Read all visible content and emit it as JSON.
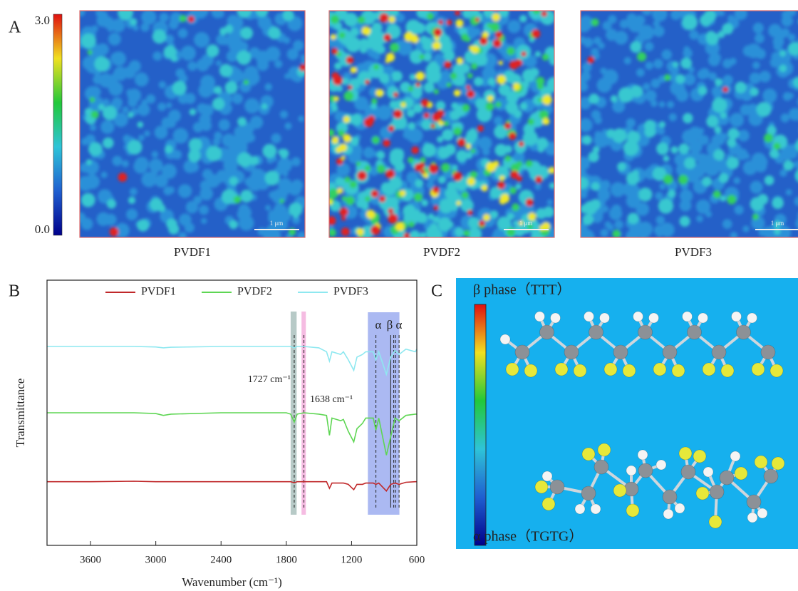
{
  "panel_a": {
    "label": "A",
    "colorbar": {
      "max_label": "3.0",
      "min_label": "0.0"
    },
    "maps": [
      {
        "caption": "PVDF1",
        "scale_bar": "1 μm"
      },
      {
        "caption": "PVDF2",
        "scale_bar": "1 μm"
      },
      {
        "caption": "PVDF3",
        "scale_bar": "1 μm"
      }
    ]
  },
  "chart_data": {
    "type": "line",
    "panel_label": "B",
    "x_label": "Wavenumber (cm⁻¹)",
    "y_label": "Transmittance",
    "xlim": [
      4000,
      600
    ],
    "xticks": [
      3600,
      3000,
      2400,
      1800,
      1200,
      600
    ],
    "ylim": [
      0,
      10
    ],
    "x": [
      4000,
      3600,
      3200,
      3000,
      2930,
      2860,
      2400,
      2000,
      1800,
      1760,
      1727,
      1700,
      1638,
      1500,
      1430,
      1403,
      1380,
      1300,
      1275,
      1230,
      1180,
      1150,
      1100,
      1070,
      1000,
      976,
      950,
      880,
      840,
      800,
      763,
      700,
      614,
      600
    ],
    "series": [
      {
        "name": "PVDF1",
        "color": "#c0282a",
        "values": [
          2.4,
          2.4,
          2.42,
          2.4,
          2.4,
          2.4,
          2.4,
          2.4,
          2.4,
          2.4,
          2.36,
          2.4,
          2.4,
          2.4,
          2.4,
          2.15,
          2.35,
          2.35,
          2.35,
          2.3,
          2.1,
          2.3,
          2.3,
          2.35,
          2.35,
          2.3,
          2.35,
          2.05,
          2.3,
          2.35,
          2.3,
          2.38,
          2.4,
          2.4
        ]
      },
      {
        "name": "PVDF2",
        "color": "#5ed653",
        "values": [
          5.0,
          5.0,
          5.0,
          4.97,
          4.9,
          4.95,
          5.0,
          5.0,
          5.0,
          4.95,
          4.65,
          4.95,
          5.0,
          4.95,
          4.9,
          4.15,
          4.8,
          4.7,
          4.75,
          4.3,
          3.9,
          4.4,
          4.6,
          4.8,
          4.8,
          4.35,
          4.8,
          3.4,
          4.1,
          4.8,
          4.7,
          4.9,
          4.95,
          4.95
        ]
      },
      {
        "name": "PVDF3",
        "color": "#8ee8f0",
        "values": [
          7.5,
          7.5,
          7.5,
          7.48,
          7.45,
          7.47,
          7.5,
          7.5,
          7.5,
          7.5,
          7.45,
          7.5,
          7.5,
          7.45,
          7.3,
          6.95,
          7.3,
          7.2,
          7.3,
          7.0,
          6.6,
          7.1,
          7.2,
          7.3,
          7.3,
          7.0,
          7.3,
          6.45,
          7.1,
          7.35,
          7.2,
          7.4,
          7.3,
          7.4
        ]
      }
    ],
    "highlight_bands": [
      {
        "range": [
          1760,
          1705
        ],
        "color": "#9fb8b4"
      },
      {
        "range": [
          1660,
          1620
        ],
        "color": "#f2a6d8"
      },
      {
        "range": [
          1050,
          760
        ],
        "color": "#8fa2ee"
      }
    ],
    "marker_lines": [
      1727,
      1638,
      976,
      840,
      812,
      795,
      763
    ],
    "annotations": [
      "1727 cm⁻¹",
      "1638 cm⁻¹"
    ],
    "phase_labels": [
      "α",
      "β",
      "α"
    ]
  },
  "panel_c": {
    "label": "C",
    "top_label": "β phase（TTT）",
    "bottom_label": "α phase（TGTG）"
  }
}
